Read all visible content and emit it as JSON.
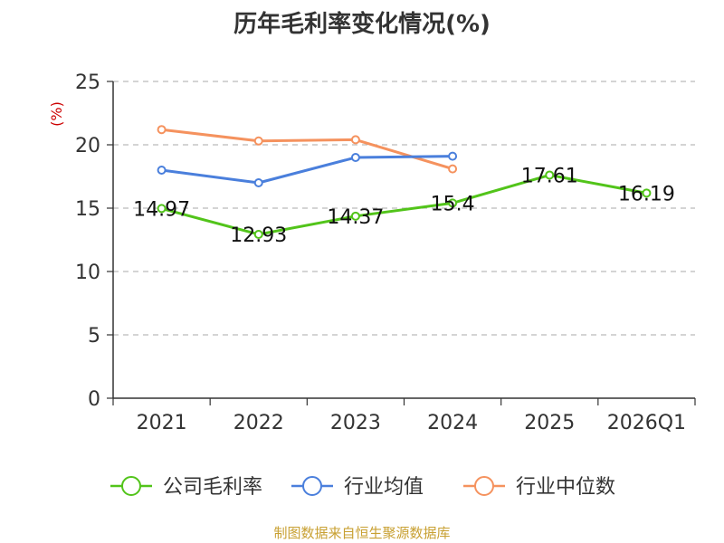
{
  "chart_data": {
    "type": "line",
    "title": "历年毛利率变化情况(%)",
    "ylabel": "(%)",
    "categories": [
      "2021",
      "2022",
      "2023",
      "2024",
      "2025",
      "2026Q1"
    ],
    "ylim": [
      0,
      25
    ],
    "yticks": [
      0,
      5,
      10,
      15,
      20,
      25
    ],
    "grid": true,
    "legend_position": "bottom",
    "series": [
      {
        "name": "公司毛利率",
        "color": "#52c41a",
        "values": [
          14.97,
          12.93,
          14.37,
          15.4,
          17.61,
          16.19
        ],
        "labels": [
          "14.97",
          "12.93",
          "14.37",
          "15.4",
          "17.61",
          "16.19"
        ]
      },
      {
        "name": "行业均值",
        "color": "#4a7fdc",
        "values": [
          18.0,
          17.0,
          19.0,
          19.1,
          null,
          null
        ]
      },
      {
        "name": "行业中位数",
        "color": "#f5925e",
        "values": [
          21.2,
          20.3,
          20.4,
          18.1,
          null,
          null
        ]
      }
    ]
  },
  "source": "制图数据来自恒生聚源数据库"
}
